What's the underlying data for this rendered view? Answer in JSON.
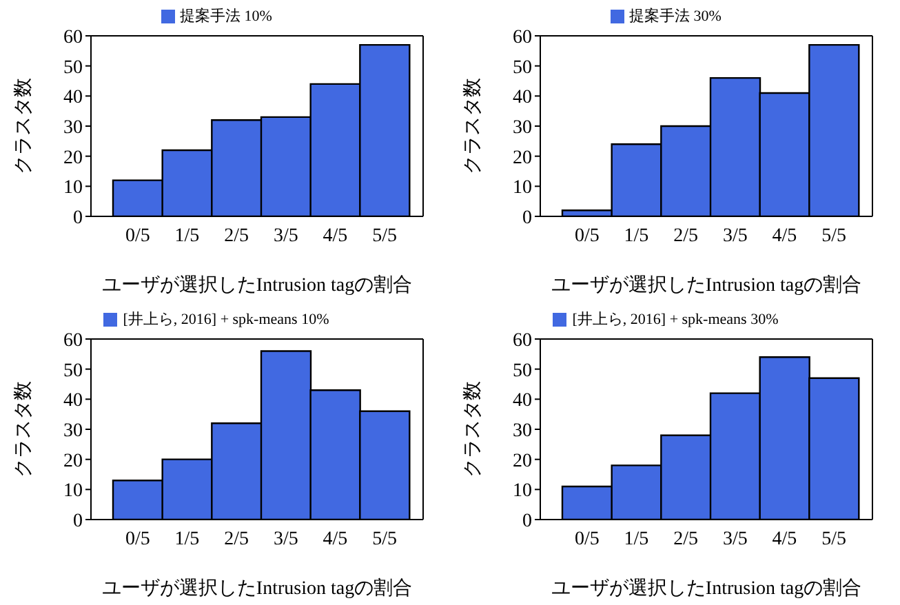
{
  "chart_data": [
    {
      "type": "bar",
      "categories": [
        "0/5",
        "1/5",
        "2/5",
        "3/5",
        "4/5",
        "5/5"
      ],
      "series": [
        {
          "name": "提案手法 10%",
          "color": "#4169e1",
          "values": [
            12,
            22,
            32,
            33,
            44,
            57
          ]
        }
      ],
      "xlabel": "ユーザが選択したIntrusion tagの割合",
      "ylabel": "クラスタ数",
      "ylim": [
        0,
        60
      ],
      "yticks": [
        0,
        10,
        20,
        30,
        40,
        50,
        60
      ],
      "legend": "top",
      "grid": false
    },
    {
      "type": "bar",
      "categories": [
        "0/5",
        "1/5",
        "2/5",
        "3/5",
        "4/5",
        "5/5"
      ],
      "series": [
        {
          "name": "提案手法 30%",
          "color": "#4169e1",
          "values": [
            2,
            24,
            30,
            46,
            41,
            57
          ]
        }
      ],
      "xlabel": "ユーザが選択したIntrusion tagの割合",
      "ylabel": "クラスタ数",
      "ylim": [
        0,
        60
      ],
      "yticks": [
        0,
        10,
        20,
        30,
        40,
        50,
        60
      ],
      "legend": "top",
      "grid": false
    },
    {
      "type": "bar",
      "categories": [
        "0/5",
        "1/5",
        "2/5",
        "3/5",
        "4/5",
        "5/5"
      ],
      "series": [
        {
          "name": "[井上ら, 2016] + spk-means 10%",
          "color": "#4169e1",
          "values": [
            13,
            20,
            32,
            56,
            43,
            36
          ]
        }
      ],
      "xlabel": "ユーザが選択したIntrusion tagの割合",
      "ylabel": "クラスタ数",
      "ylim": [
        0,
        60
      ],
      "yticks": [
        0,
        10,
        20,
        30,
        40,
        50,
        60
      ],
      "legend": "top",
      "grid": false
    },
    {
      "type": "bar",
      "categories": [
        "0/5",
        "1/5",
        "2/5",
        "3/5",
        "4/5",
        "5/5"
      ],
      "series": [
        {
          "name": "[井上ら, 2016] + spk-means 30%",
          "color": "#4169e1",
          "values": [
            11,
            18,
            28,
            42,
            54,
            47
          ]
        }
      ],
      "xlabel": "ユーザが選択したIntrusion tagの割合",
      "ylabel": "クラスタ数",
      "ylim": [
        0,
        60
      ],
      "yticks": [
        0,
        10,
        20,
        30,
        40,
        50,
        60
      ],
      "legend": "top",
      "grid": false
    }
  ]
}
